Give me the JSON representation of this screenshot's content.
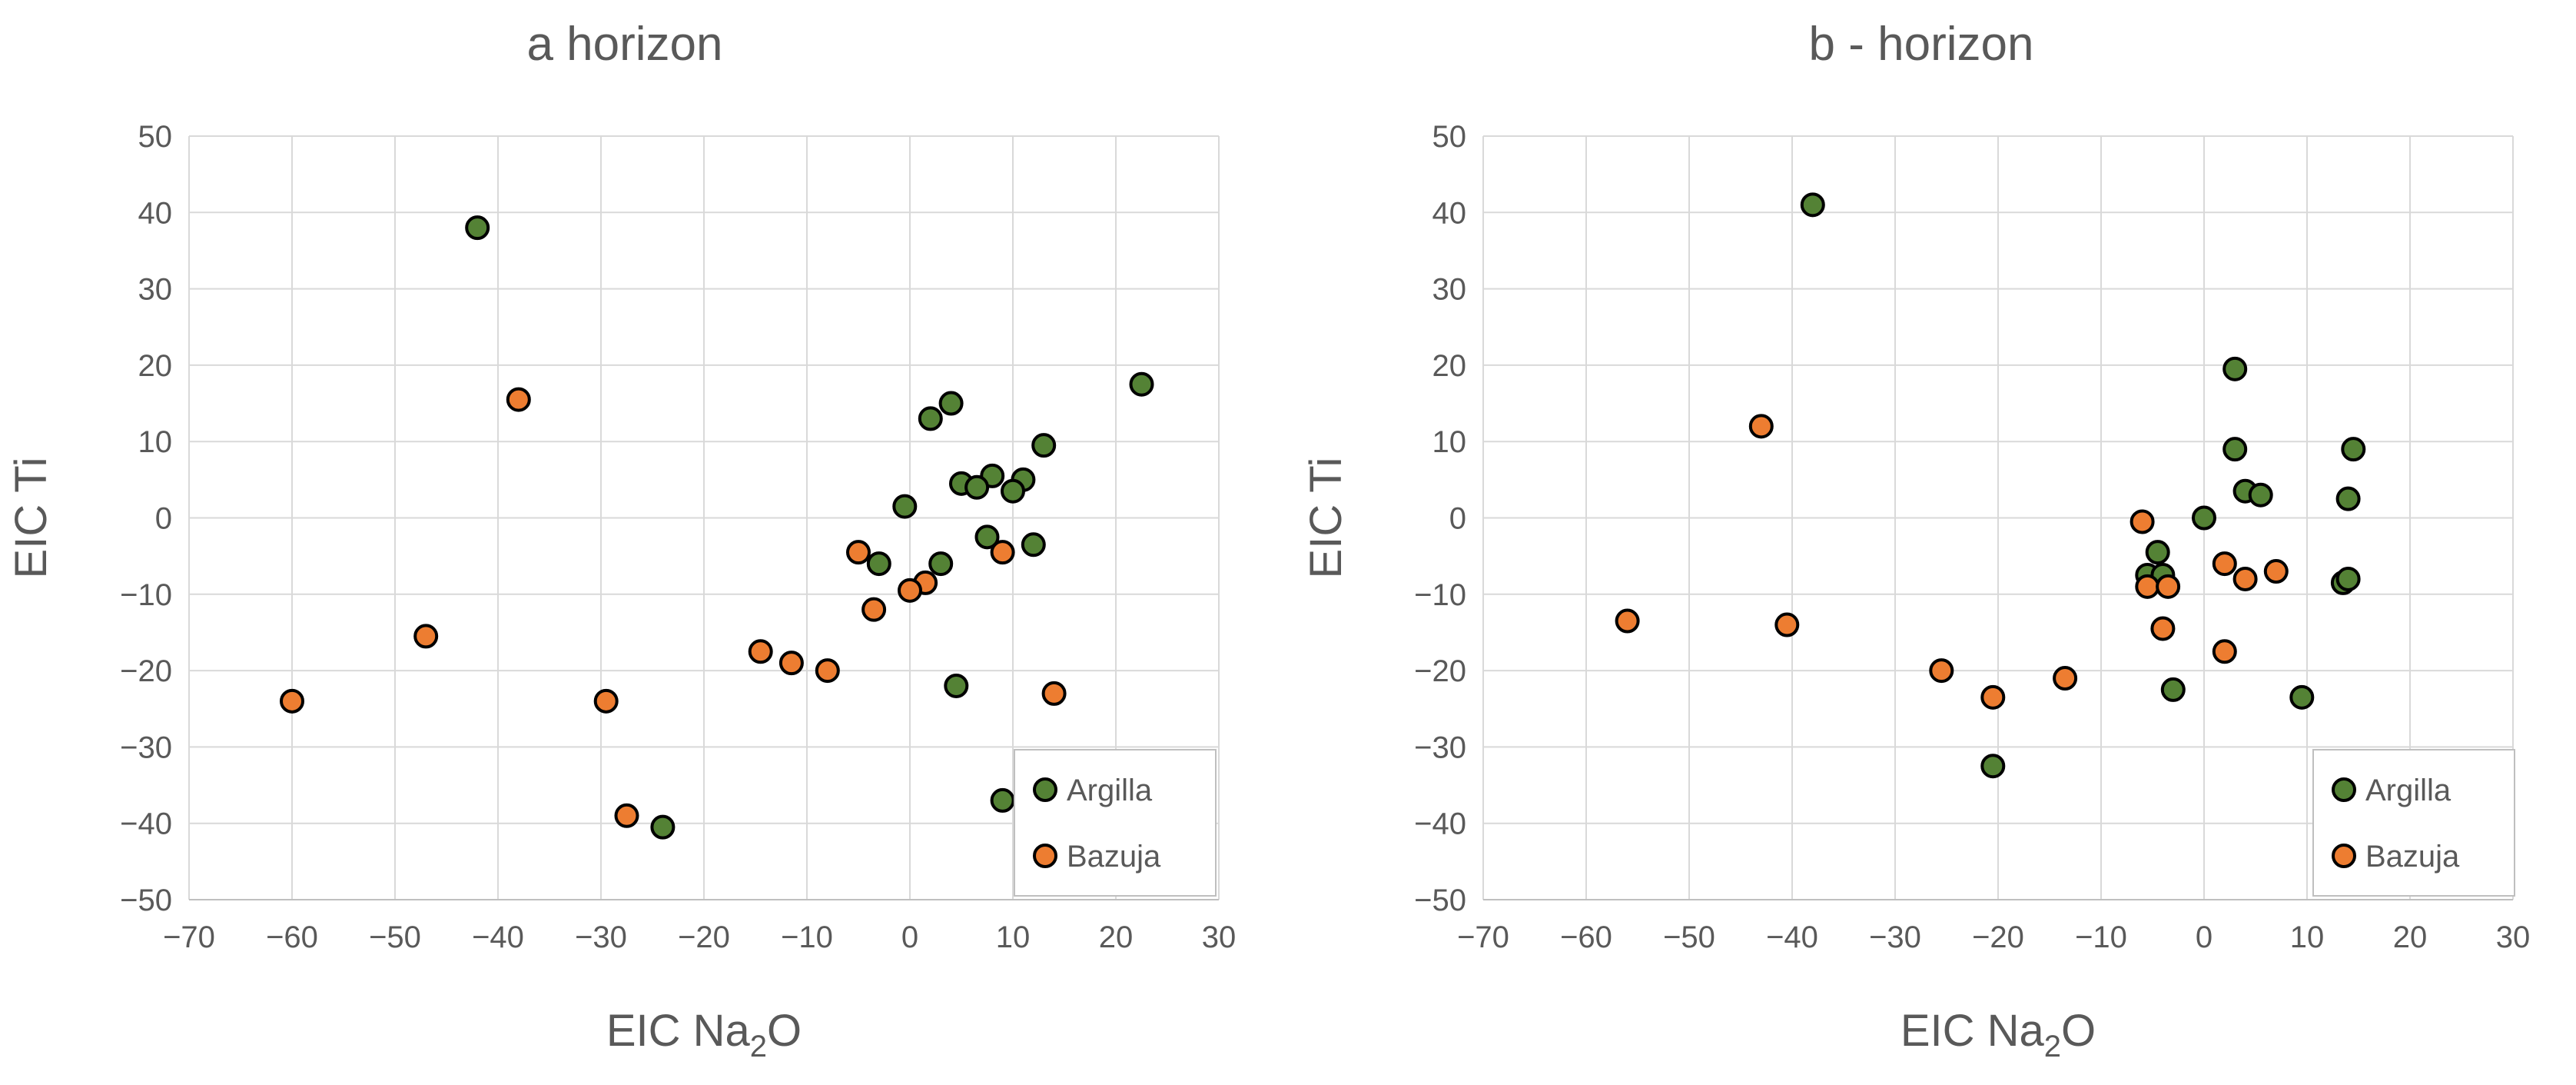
{
  "chart_data": [
    {
      "type": "scatter",
      "title": "a horizon",
      "xlabel": "EIC Na₂O",
      "ylabel": "EIC Ti",
      "xlim": [
        -70,
        30
      ],
      "ylim": [
        -50,
        50
      ],
      "xticks": [
        -70,
        -60,
        -50,
        -40,
        -30,
        -20,
        -10,
        0,
        10,
        20,
        30
      ],
      "yticks": [
        -50,
        -40,
        -30,
        -20,
        -10,
        0,
        10,
        20,
        30,
        40,
        50
      ],
      "grid": true,
      "legend": "bottom-right",
      "series": [
        {
          "name": "Argilla",
          "color": "#548235",
          "points": [
            [
              -42,
              38
            ],
            [
              22.5,
              17.5
            ],
            [
              4,
              15
            ],
            [
              2,
              13
            ],
            [
              13,
              9.5
            ],
            [
              8,
              5.5
            ],
            [
              5,
              4.5
            ],
            [
              6.5,
              4
            ],
            [
              11,
              5
            ],
            [
              10,
              3.5
            ],
            [
              -0.5,
              1.5
            ],
            [
              7.5,
              -2.5
            ],
            [
              12,
              -3.5
            ],
            [
              3,
              -6
            ],
            [
              -3,
              -6
            ],
            [
              4.5,
              -22
            ],
            [
              9,
              -37
            ],
            [
              -24,
              -40.5
            ]
          ]
        },
        {
          "name": "Bazuja",
          "color": "#ED7D31",
          "points": [
            [
              -38,
              15.5
            ],
            [
              -5,
              -4.5
            ],
            [
              9,
              -4.5
            ],
            [
              1.5,
              -8.5
            ],
            [
              0,
              -9.5
            ],
            [
              -3.5,
              -12
            ],
            [
              -47,
              -15.5
            ],
            [
              -14.5,
              -17.5
            ],
            [
              -11.5,
              -19
            ],
            [
              -8,
              -20
            ],
            [
              -60,
              -24
            ],
            [
              -29.5,
              -24
            ],
            [
              14,
              -23
            ],
            [
              -27.5,
              -39
            ]
          ]
        }
      ]
    },
    {
      "type": "scatter",
      "title": "b - horizon",
      "xlabel": "EIC Na₂O",
      "ylabel": "EIC Ti",
      "xlim": [
        -70,
        30
      ],
      "ylim": [
        -50,
        50
      ],
      "xticks": [
        -70,
        -60,
        -50,
        -40,
        -30,
        -20,
        -10,
        0,
        10,
        20,
        30
      ],
      "yticks": [
        -50,
        -40,
        -30,
        -20,
        -10,
        0,
        10,
        20,
        30,
        40,
        50
      ],
      "grid": true,
      "legend": "bottom-right",
      "series": [
        {
          "name": "Argilla",
          "color": "#548235",
          "points": [
            [
              -38,
              41
            ],
            [
              3,
              19.5
            ],
            [
              3,
              9
            ],
            [
              14.5,
              9
            ],
            [
              4,
              3.5
            ],
            [
              5.5,
              3
            ],
            [
              14,
              2.5
            ],
            [
              0,
              0
            ],
            [
              -4.5,
              -4.5
            ],
            [
              -5.5,
              -7.5
            ],
            [
              -4,
              -7.5
            ],
            [
              13.5,
              -8.5
            ],
            [
              14,
              -8
            ],
            [
              -3,
              -22.5
            ],
            [
              9.5,
              -23.5
            ],
            [
              -20.5,
              -32.5
            ]
          ]
        },
        {
          "name": "Bazuja",
          "color": "#ED7D31",
          "points": [
            [
              -43,
              12
            ],
            [
              -6,
              -0.5
            ],
            [
              -5.5,
              -9
            ],
            [
              -3.5,
              -9
            ],
            [
              2,
              -6
            ],
            [
              4,
              -8
            ],
            [
              7,
              -7
            ],
            [
              -56,
              -13.5
            ],
            [
              -40.5,
              -14
            ],
            [
              -4,
              -14.5
            ],
            [
              2,
              -17.5
            ],
            [
              -25.5,
              -20
            ],
            [
              -13.5,
              -21
            ],
            [
              -20.5,
              -23.5
            ]
          ]
        }
      ]
    }
  ]
}
